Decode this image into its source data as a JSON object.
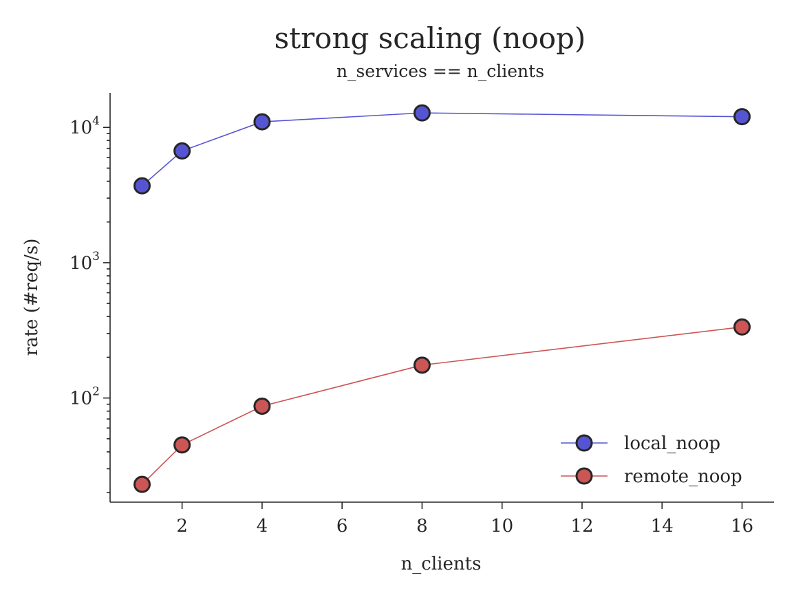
{
  "chart_data": {
    "type": "line",
    "title": "strong scaling (noop)",
    "subtitle": "n_services == n_clients",
    "xlabel": "n_clients",
    "ylabel": "rate (#req/s)",
    "yscale": "log",
    "xlim": [
      0.2,
      16.8
    ],
    "ylim": [
      17,
      18000
    ],
    "x_ticks": [
      2,
      4,
      6,
      8,
      10,
      12,
      14,
      16
    ],
    "y_ticks": [
      100,
      1000,
      10000
    ],
    "y_tick_labels": [
      {
        "base": "10",
        "exp": "2"
      },
      {
        "base": "10",
        "exp": "3"
      },
      {
        "base": "10",
        "exp": "4"
      }
    ],
    "grid": false,
    "legend_position": "lower-right",
    "x": [
      1,
      2,
      4,
      8,
      16
    ],
    "series": [
      {
        "name": "local_noop",
        "color": "#5555d4",
        "values": [
          3700,
          6700,
          11000,
          12800,
          12000
        ]
      },
      {
        "name": "remote_noop",
        "color": "#cc5555",
        "values": [
          23,
          45,
          87,
          175,
          335
        ]
      }
    ]
  }
}
